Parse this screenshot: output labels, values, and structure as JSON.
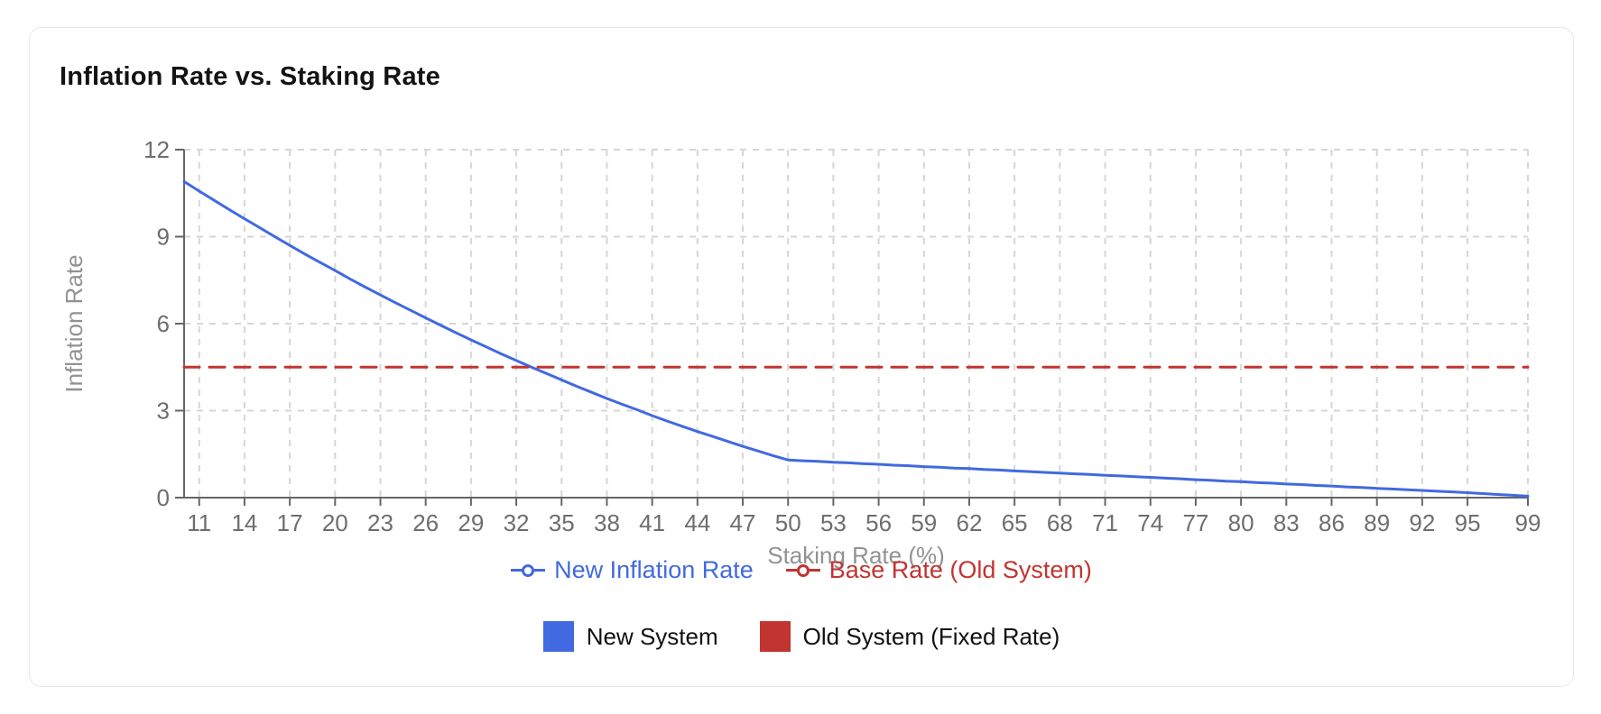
{
  "card": {
    "title": "Inflation Rate vs. Staking Rate"
  },
  "colors": {
    "series_blue": "#4169E1",
    "series_red": "#C23430",
    "axis": "#666666",
    "tick_label": "#6E6E6E",
    "axis_title": "#929292",
    "grid": "#D6D6D6",
    "title_text": "#131313",
    "card_border": "#E7E7E7",
    "background": "#FFFFFF"
  },
  "chart_data": {
    "type": "line",
    "title": "Inflation Rate vs. Staking Rate",
    "xlabel": "Staking Rate (%)",
    "ylabel": "Inflation Rate",
    "xlim": [
      10,
      99
    ],
    "ylim": [
      0,
      12
    ],
    "grid": true,
    "grid_style": "dashed",
    "legend_position": "bottom",
    "x_ticks": [
      11,
      14,
      17,
      20,
      23,
      26,
      29,
      32,
      35,
      38,
      41,
      44,
      47,
      50,
      53,
      56,
      59,
      62,
      65,
      68,
      71,
      74,
      77,
      80,
      83,
      86,
      89,
      92,
      95,
      99
    ],
    "y_ticks": [
      0,
      3,
      6,
      9,
      12
    ],
    "series": [
      {
        "name": "New Inflation Rate",
        "color": "#4169E1",
        "style": "solid",
        "x": [
          10,
          11,
          12,
          13,
          14,
          15,
          16,
          17,
          18,
          19,
          20,
          21,
          22,
          23,
          24,
          25,
          26,
          27,
          28,
          29,
          30,
          31,
          32,
          33,
          34,
          35,
          36,
          37,
          38,
          39,
          40,
          41,
          42,
          43,
          44,
          45,
          46,
          47,
          48,
          49,
          50,
          51,
          52,
          53,
          54,
          55,
          56,
          57,
          58,
          59,
          60,
          61,
          62,
          63,
          64,
          65,
          66,
          67,
          68,
          69,
          70,
          71,
          72,
          73,
          74,
          75,
          76,
          77,
          78,
          79,
          80,
          81,
          82,
          83,
          84,
          85,
          86,
          87,
          88,
          89,
          90,
          91,
          92,
          93,
          94,
          95,
          96,
          97,
          98,
          99
        ],
        "y": [
          10.9,
          10.57,
          10.25,
          9.93,
          9.62,
          9.31,
          9.0,
          8.7,
          8.4,
          8.11,
          7.83,
          7.54,
          7.26,
          6.99,
          6.72,
          6.46,
          6.2,
          5.94,
          5.69,
          5.44,
          5.2,
          4.96,
          4.73,
          4.5,
          4.28,
          4.06,
          3.84,
          3.63,
          3.42,
          3.22,
          3.03,
          2.83,
          2.64,
          2.46,
          2.28,
          2.11,
          1.94,
          1.77,
          1.61,
          1.45,
          1.3,
          1.27,
          1.25,
          1.22,
          1.2,
          1.17,
          1.15,
          1.12,
          1.1,
          1.07,
          1.05,
          1.02,
          1.0,
          0.97,
          0.95,
          0.92,
          0.9,
          0.87,
          0.85,
          0.82,
          0.8,
          0.77,
          0.75,
          0.72,
          0.7,
          0.67,
          0.65,
          0.62,
          0.6,
          0.57,
          0.55,
          0.52,
          0.5,
          0.47,
          0.45,
          0.42,
          0.4,
          0.37,
          0.35,
          0.32,
          0.3,
          0.27,
          0.25,
          0.22,
          0.2,
          0.17,
          0.14,
          0.11,
          0.08,
          0.05
        ]
      },
      {
        "name": "Base Rate (Old System)",
        "color": "#C23430",
        "style": "dashed",
        "x": [
          10,
          99
        ],
        "y": [
          4.5,
          4.5
        ]
      }
    ],
    "swatch_legend": [
      {
        "label": "New System",
        "color": "#4169E1"
      },
      {
        "label": "Old System (Fixed Rate)",
        "color": "#C23430"
      }
    ]
  }
}
